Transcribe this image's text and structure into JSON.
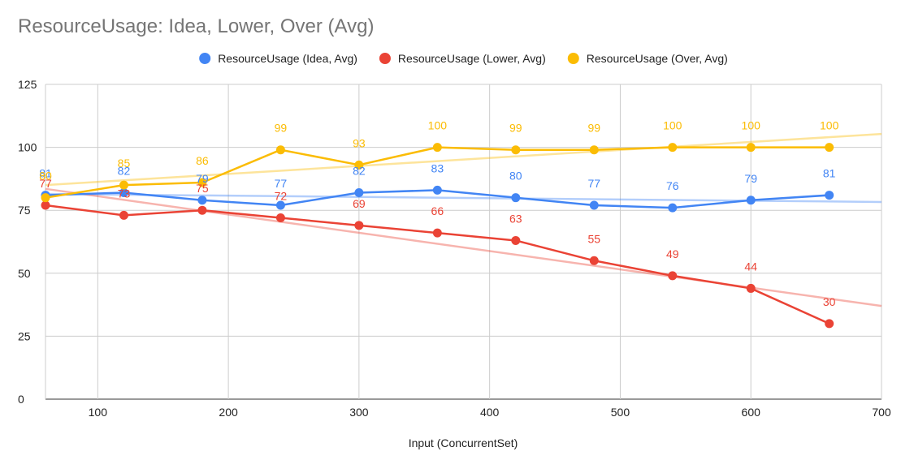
{
  "chart_data": {
    "type": "line",
    "title": "ResourceUsage: Idea, Lower, Over (Avg)",
    "xlabel": "Input (ConcurrentSet)",
    "ylabel": "",
    "xlim": [
      60,
      700
    ],
    "ylim": [
      0,
      125
    ],
    "x_ticks": [
      100,
      200,
      300,
      400,
      500,
      600,
      700
    ],
    "y_ticks": [
      0,
      25,
      50,
      75,
      100,
      125
    ],
    "grid": true,
    "legend_position": "top",
    "x": [
      60,
      120,
      180,
      240,
      300,
      360,
      420,
      480,
      540,
      600,
      660
    ],
    "series": [
      {
        "name": "ResourceUsage (Idea, Avg)",
        "color": "#4285F4",
        "values": [
          81,
          82,
          79,
          77,
          82,
          83,
          80,
          77,
          76,
          79,
          81
        ],
        "labels": [
          "81",
          "82",
          "79",
          "77",
          "82",
          "83",
          "80",
          "77",
          "76",
          "79",
          "81"
        ],
        "trendline": [
          81.5,
          78.3
        ]
      },
      {
        "name": "ResourceUsage (Lower, Avg)",
        "color": "#EA4335",
        "values": [
          77,
          73,
          75,
          72,
          69,
          66,
          63,
          55,
          49,
          44,
          30
        ],
        "labels": [
          "77",
          "73",
          "75",
          "72",
          "69",
          "66",
          "63",
          "55",
          "49",
          "44",
          "30"
        ],
        "trendline": [
          83.5,
          37
        ]
      },
      {
        "name": "ResourceUsage (Over, Avg)",
        "color": "#FBBC04",
        "values": [
          80,
          85,
          86,
          99,
          93,
          100,
          99,
          99,
          100,
          100,
          100
        ],
        "labels": [
          "80",
          "85",
          "86",
          "99",
          "93",
          "100",
          "99",
          "99",
          "100",
          "100",
          "100"
        ],
        "trendline": [
          85,
          105.3
        ]
      }
    ]
  }
}
